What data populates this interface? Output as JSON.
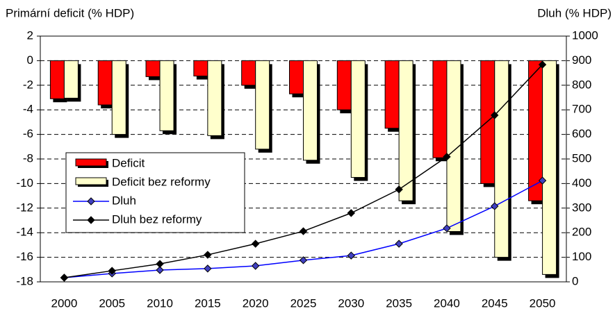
{
  "chart_data": {
    "type": "bar_line",
    "ylabel": "Primární deficit (% HDP)",
    "y2label": "Dluh (% HDP)",
    "categories": [
      "2000",
      "2005",
      "2010",
      "2015",
      "2020",
      "2025",
      "2030",
      "2035",
      "2040",
      "2045",
      "2050"
    ],
    "series": [
      {
        "name": "Deficit",
        "kind": "bar",
        "color": "#ff0000",
        "values": [
          -3.1,
          -3.6,
          -1.3,
          -1.25,
          -2.0,
          -2.7,
          -4.0,
          -5.5,
          -7.9,
          -10.0,
          -11.4
        ]
      },
      {
        "name": "Deficit bez reformy",
        "kind": "bar",
        "color": "#ffffcc",
        "values": [
          -3.05,
          -6.0,
          -5.7,
          -6.1,
          -7.2,
          -8.1,
          -9.5,
          -11.4,
          -13.9,
          -16.0,
          -17.4
        ]
      },
      {
        "name": "Dluh",
        "kind": "line",
        "axis": "y2",
        "color": "#0000ff",
        "values": [
          17,
          34,
          48,
          54,
          65,
          88,
          107,
          155,
          218,
          308,
          412
        ]
      },
      {
        "name": "Dluh bez reformy",
        "kind": "line",
        "axis": "y2",
        "color": "#000000",
        "values": [
          17,
          45,
          73,
          110,
          155,
          206,
          280,
          376,
          509,
          678,
          884
        ]
      }
    ],
    "ylim": [
      -18,
      2
    ],
    "yticks": [
      -18,
      -16,
      -14,
      -12,
      -10,
      -8,
      -6,
      -4,
      -2,
      0,
      2
    ],
    "y2lim": [
      0,
      1000
    ],
    "y2ticks": [
      0,
      100,
      200,
      300,
      400,
      500,
      600,
      700,
      800,
      900,
      1000
    ],
    "grid": true,
    "legend": "lower left"
  }
}
